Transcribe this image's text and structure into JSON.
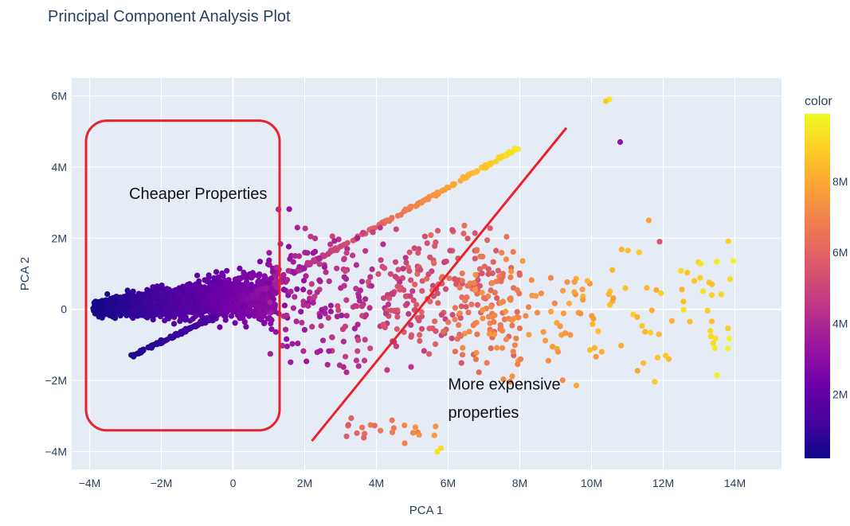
{
  "chart_data": {
    "type": "scatter",
    "title": "Principal Component Analysis Plot",
    "xlabel": "PCA 1",
    "ylabel": "PCA 2",
    "xlim": [
      -4.5,
      15.3
    ],
    "ylim": [
      -4.5,
      6.5
    ],
    "x_ticks": [
      -4,
      -2,
      0,
      2,
      4,
      6,
      8,
      10,
      12,
      14
    ],
    "x_tick_labels": [
      "−4M",
      "−2M",
      "0",
      "2M",
      "4M",
      "6M",
      "8M",
      "10M",
      "12M",
      "14M"
    ],
    "y_ticks": [
      -4,
      -2,
      0,
      2,
      4,
      6
    ],
    "y_tick_labels": [
      "−4M",
      "−2M",
      "0",
      "2M",
      "4M",
      "6M"
    ],
    "grid": true,
    "colorbar": {
      "title": "color",
      "range": [
        0.2,
        9.9
      ],
      "ticks": [
        2,
        4,
        6,
        8
      ],
      "tick_labels": [
        "2M",
        "4M",
        "6M",
        "8M"
      ],
      "colorscale": [
        "#0d0887",
        "#46039f",
        "#7201a8",
        "#9c179e",
        "#bd3786",
        "#d8576b",
        "#ed7953",
        "#fb9f3a",
        "#fdca26",
        "#f0f921"
      ]
    },
    "clusters": [
      {
        "name": "dense-left",
        "x_range": [
          -3.9,
          1.2
        ],
        "y_range": [
          -0.9,
          1.6
        ],
        "color_range": [
          0.3,
          3.0
        ],
        "count": 1500
      },
      {
        "name": "diagonal-upper",
        "x_start": -0.5,
        "y_start": -0.2,
        "x_end": 7.9,
        "y_end": 4.5,
        "color_range": [
          2.0,
          9.5
        ],
        "count": 180
      },
      {
        "name": "diagonal-lower",
        "x_start": -2.8,
        "y_start": -1.3,
        "x_end": -0.5,
        "y_end": -0.2,
        "color_range": [
          0.5,
          1.5
        ],
        "count": 120
      },
      {
        "name": "middle-spread",
        "x_range": [
          1.0,
          8.0
        ],
        "y_range": [
          -2.5,
          3.2
        ],
        "color_range": [
          2.5,
          7.5
        ],
        "count": 420
      },
      {
        "name": "right-spread",
        "x_range": [
          6.0,
          14.0
        ],
        "y_range": [
          -2.8,
          2.5
        ],
        "color_range": [
          6.0,
          9.9
        ],
        "count": 160
      },
      {
        "name": "lower-tail",
        "x_range": [
          3.0,
          6.0
        ],
        "y_range": [
          -4.0,
          -2.8
        ],
        "color_range": [
          5.5,
          8.0
        ],
        "count": 22
      }
    ],
    "outliers": [
      {
        "x": 10.5,
        "y": 5.9,
        "c": 9.5
      },
      {
        "x": 10.4,
        "y": 5.85,
        "c": 8.8
      },
      {
        "x": 10.8,
        "y": 4.7,
        "c": 3.2
      },
      {
        "x": 11.6,
        "y": 2.5,
        "c": 7.8
      },
      {
        "x": 11.9,
        "y": 1.9,
        "c": 5.5
      },
      {
        "x": 5.8,
        "y": -3.9,
        "c": 9.2
      },
      {
        "x": 5.7,
        "y": -4.0,
        "c": 9.4
      }
    ],
    "annotations": [
      {
        "text": "Cheaper Properties",
        "x": -2.9,
        "y": 3.1
      },
      {
        "text": "More expensive",
        "x": 6.0,
        "y": -2.25
      },
      {
        "text": "properties",
        "x": 6.0,
        "y": -3.05
      }
    ],
    "drawn_shapes": {
      "box": {
        "x0": -4.1,
        "y0": -3.4,
        "x1": 1.3,
        "y1": 5.3,
        "color": "#e8232b"
      },
      "line": {
        "x0": 2.2,
        "y0": -3.7,
        "x1": 9.3,
        "y1": 5.1,
        "color": "#e8232b"
      }
    }
  }
}
